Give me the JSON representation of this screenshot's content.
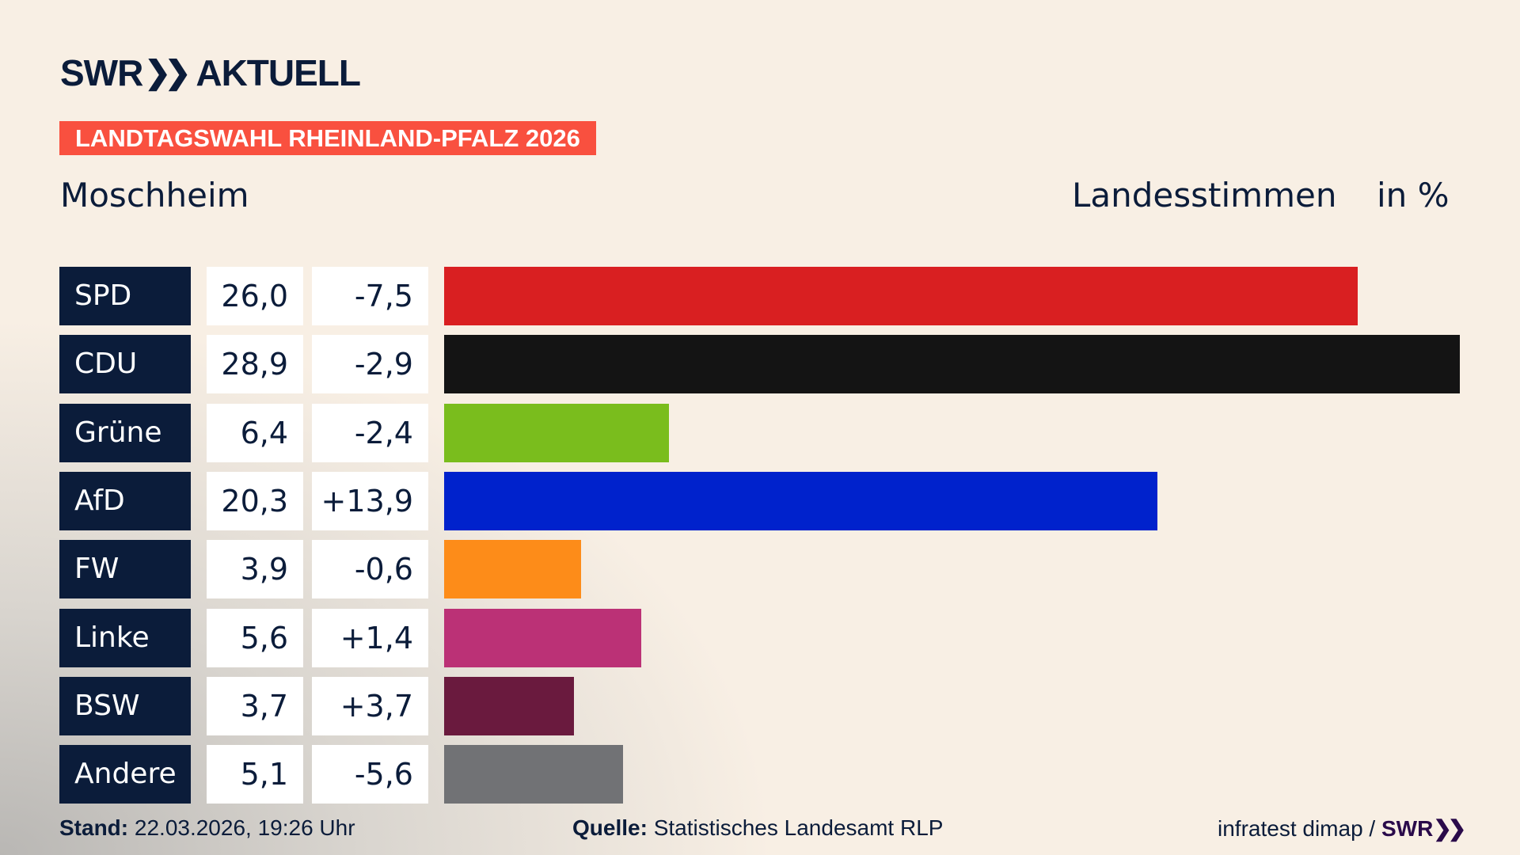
{
  "brand": {
    "logo_text": "SWR",
    "logo_suffix": "AKTUELL",
    "chevron_icon": "double-chevron-right-icon"
  },
  "banner": {
    "text": "LANDTAGSWAHL RHEINLAND-PFALZ 2026",
    "color": "#f9503f"
  },
  "header": {
    "region": "Moschheim",
    "measure": "Landesstimmen",
    "unit": "in %"
  },
  "chart_data": {
    "type": "bar",
    "orientation": "horizontal",
    "categories": [
      "SPD",
      "CDU",
      "Grüne",
      "AfD",
      "FW",
      "Linke",
      "BSW",
      "Andere"
    ],
    "values": [
      26.0,
      28.9,
      6.4,
      20.3,
      3.9,
      5.6,
      3.7,
      5.1
    ],
    "value_labels": [
      "26,0",
      "28,9",
      "6,4",
      "20,3",
      "3,9",
      "5,6",
      "3,7",
      "5,1"
    ],
    "diff_labels": [
      "-7,5",
      "-2,9",
      "-2,4",
      "+13,9",
      "-0,6",
      "+1,4",
      "+3,7",
      "-5,6"
    ],
    "diffs": [
      -7.5,
      -2.9,
      -2.4,
      13.9,
      -0.6,
      1.4,
      3.7,
      -5.6
    ],
    "colors": [
      "#d91f21",
      "#141414",
      "#7abd1d",
      "#0022cc",
      "#fd8c19",
      "#bb3176",
      "#6a1a3e",
      "#717275"
    ],
    "xlim": [
      0,
      28.9
    ]
  },
  "footer": {
    "stand_label": "Stand:",
    "stand_value": "22.03.2026, 19:26 Uhr",
    "source_label": "Quelle:",
    "source_value": "Statistisches Landesamt RLP",
    "credit": "infratest dimap /",
    "credit_brand": "SWR"
  }
}
